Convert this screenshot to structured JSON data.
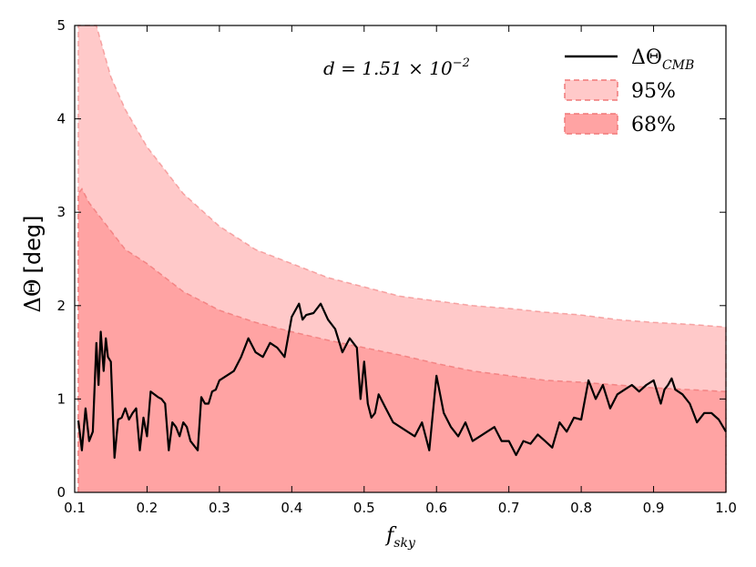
{
  "chart_data": {
    "type": "area",
    "xlabel": {
      "main": "f",
      "sub": "sky"
    },
    "ylabel": {
      "prefix": "ΔΘ",
      "unit": "[deg]"
    },
    "annotation": {
      "left": "d = 1.51 × 10",
      "exponent": "−2"
    },
    "xlim": [
      0.1,
      1.0
    ],
    "ylim": [
      0,
      5
    ],
    "x_ticks": [
      0.1,
      0.2,
      0.3,
      0.4,
      0.5,
      0.6,
      0.7,
      0.8,
      0.9,
      1.0
    ],
    "x_tick_labels": [
      "0.1",
      "0.2",
      "0.3",
      "0.4",
      "0.5",
      "0.6",
      "0.7",
      "0.8",
      "0.9",
      "1.0"
    ],
    "y_ticks": [
      0,
      1,
      2,
      3,
      4,
      5
    ],
    "y_tick_labels": [
      "0",
      "1",
      "2",
      "3",
      "4",
      "5"
    ],
    "legend_position": "top-right",
    "legend": [
      {
        "label_main": "ΔΘ",
        "label_sub": "CMB",
        "kind": "line"
      },
      {
        "label_main": "95%",
        "label_sub": "",
        "kind": "band95"
      },
      {
        "label_main": "68%",
        "label_sub": "",
        "kind": "band68"
      }
    ],
    "colors": {
      "line": "#000000",
      "band95": "#ffc9c9",
      "band68": "#ffa3a3",
      "band_edge": "#f07878",
      "axes": "#000000"
    },
    "band_95_upper": {
      "x": [
        0.105,
        0.11,
        0.12,
        0.13,
        0.15,
        0.17,
        0.2,
        0.25,
        0.3,
        0.35,
        0.4,
        0.45,
        0.5,
        0.55,
        0.6,
        0.65,
        0.7,
        0.75,
        0.8,
        0.85,
        0.9,
        0.95,
        1.0
      ],
      "y": [
        5.0,
        5.0,
        5.0,
        5.0,
        4.45,
        4.1,
        3.7,
        3.2,
        2.85,
        2.6,
        2.45,
        2.3,
        2.2,
        2.1,
        2.05,
        2.0,
        1.97,
        1.93,
        1.9,
        1.85,
        1.82,
        1.8,
        1.77
      ]
    },
    "band_68_upper": {
      "x": [
        0.105,
        0.11,
        0.12,
        0.13,
        0.15,
        0.17,
        0.2,
        0.25,
        0.3,
        0.35,
        0.4,
        0.45,
        0.5,
        0.55,
        0.6,
        0.65,
        0.7,
        0.75,
        0.8,
        0.85,
        0.9,
        0.95,
        1.0
      ],
      "y": [
        3.2,
        3.25,
        3.1,
        3.0,
        2.8,
        2.6,
        2.45,
        2.15,
        1.95,
        1.82,
        1.72,
        1.63,
        1.55,
        1.47,
        1.38,
        1.3,
        1.25,
        1.2,
        1.18,
        1.15,
        1.12,
        1.1,
        1.08
      ]
    },
    "series": [
      {
        "name": "ΔΘ_CMB",
        "x": [
          0.105,
          0.11,
          0.115,
          0.12,
          0.125,
          0.13,
          0.133,
          0.136,
          0.14,
          0.143,
          0.146,
          0.15,
          0.155,
          0.16,
          0.165,
          0.17,
          0.175,
          0.18,
          0.185,
          0.19,
          0.195,
          0.2,
          0.205,
          0.21,
          0.215,
          0.22,
          0.225,
          0.23,
          0.235,
          0.24,
          0.245,
          0.25,
          0.255,
          0.26,
          0.265,
          0.27,
          0.275,
          0.28,
          0.285,
          0.29,
          0.295,
          0.3,
          0.31,
          0.32,
          0.33,
          0.34,
          0.35,
          0.36,
          0.37,
          0.38,
          0.39,
          0.4,
          0.405,
          0.41,
          0.415,
          0.42,
          0.43,
          0.44,
          0.45,
          0.46,
          0.47,
          0.48,
          0.49,
          0.495,
          0.5,
          0.505,
          0.51,
          0.515,
          0.52,
          0.53,
          0.54,
          0.55,
          0.56,
          0.57,
          0.58,
          0.59,
          0.6,
          0.61,
          0.62,
          0.63,
          0.64,
          0.65,
          0.66,
          0.67,
          0.68,
          0.69,
          0.7,
          0.71,
          0.72,
          0.73,
          0.74,
          0.75,
          0.76,
          0.77,
          0.78,
          0.79,
          0.8,
          0.81,
          0.82,
          0.83,
          0.84,
          0.85,
          0.86,
          0.87,
          0.88,
          0.89,
          0.9,
          0.91,
          0.915,
          0.92,
          0.925,
          0.93,
          0.94,
          0.95,
          0.96,
          0.97,
          0.98,
          0.99,
          1.0
        ],
        "y": [
          0.77,
          0.45,
          0.9,
          0.55,
          0.65,
          1.6,
          1.15,
          1.72,
          1.3,
          1.65,
          1.45,
          1.4,
          0.37,
          0.78,
          0.8,
          0.9,
          0.78,
          0.85,
          0.9,
          0.45,
          0.8,
          0.6,
          1.08,
          1.05,
          1.02,
          1.0,
          0.95,
          0.45,
          0.75,
          0.7,
          0.6,
          0.75,
          0.7,
          0.55,
          0.5,
          0.45,
          1.02,
          0.95,
          0.95,
          1.08,
          1.1,
          1.2,
          1.25,
          1.3,
          1.45,
          1.65,
          1.5,
          1.45,
          1.6,
          1.55,
          1.45,
          1.88,
          1.95,
          2.02,
          1.85,
          1.9,
          1.92,
          2.02,
          1.85,
          1.75,
          1.5,
          1.65,
          1.55,
          1.0,
          1.4,
          0.95,
          0.8,
          0.85,
          1.05,
          0.9,
          0.75,
          0.7,
          0.65,
          0.6,
          0.75,
          0.45,
          1.25,
          0.85,
          0.7,
          0.6,
          0.75,
          0.55,
          0.6,
          0.65,
          0.7,
          0.55,
          0.55,
          0.4,
          0.55,
          0.52,
          0.62,
          0.55,
          0.48,
          0.75,
          0.65,
          0.8,
          0.78,
          1.2,
          1.0,
          1.15,
          0.9,
          1.05,
          1.1,
          1.15,
          1.08,
          1.15,
          1.2,
          0.95,
          1.1,
          1.15,
          1.22,
          1.1,
          1.05,
          0.95,
          0.75,
          0.85,
          0.85,
          0.78,
          0.65
        ]
      }
    ]
  }
}
